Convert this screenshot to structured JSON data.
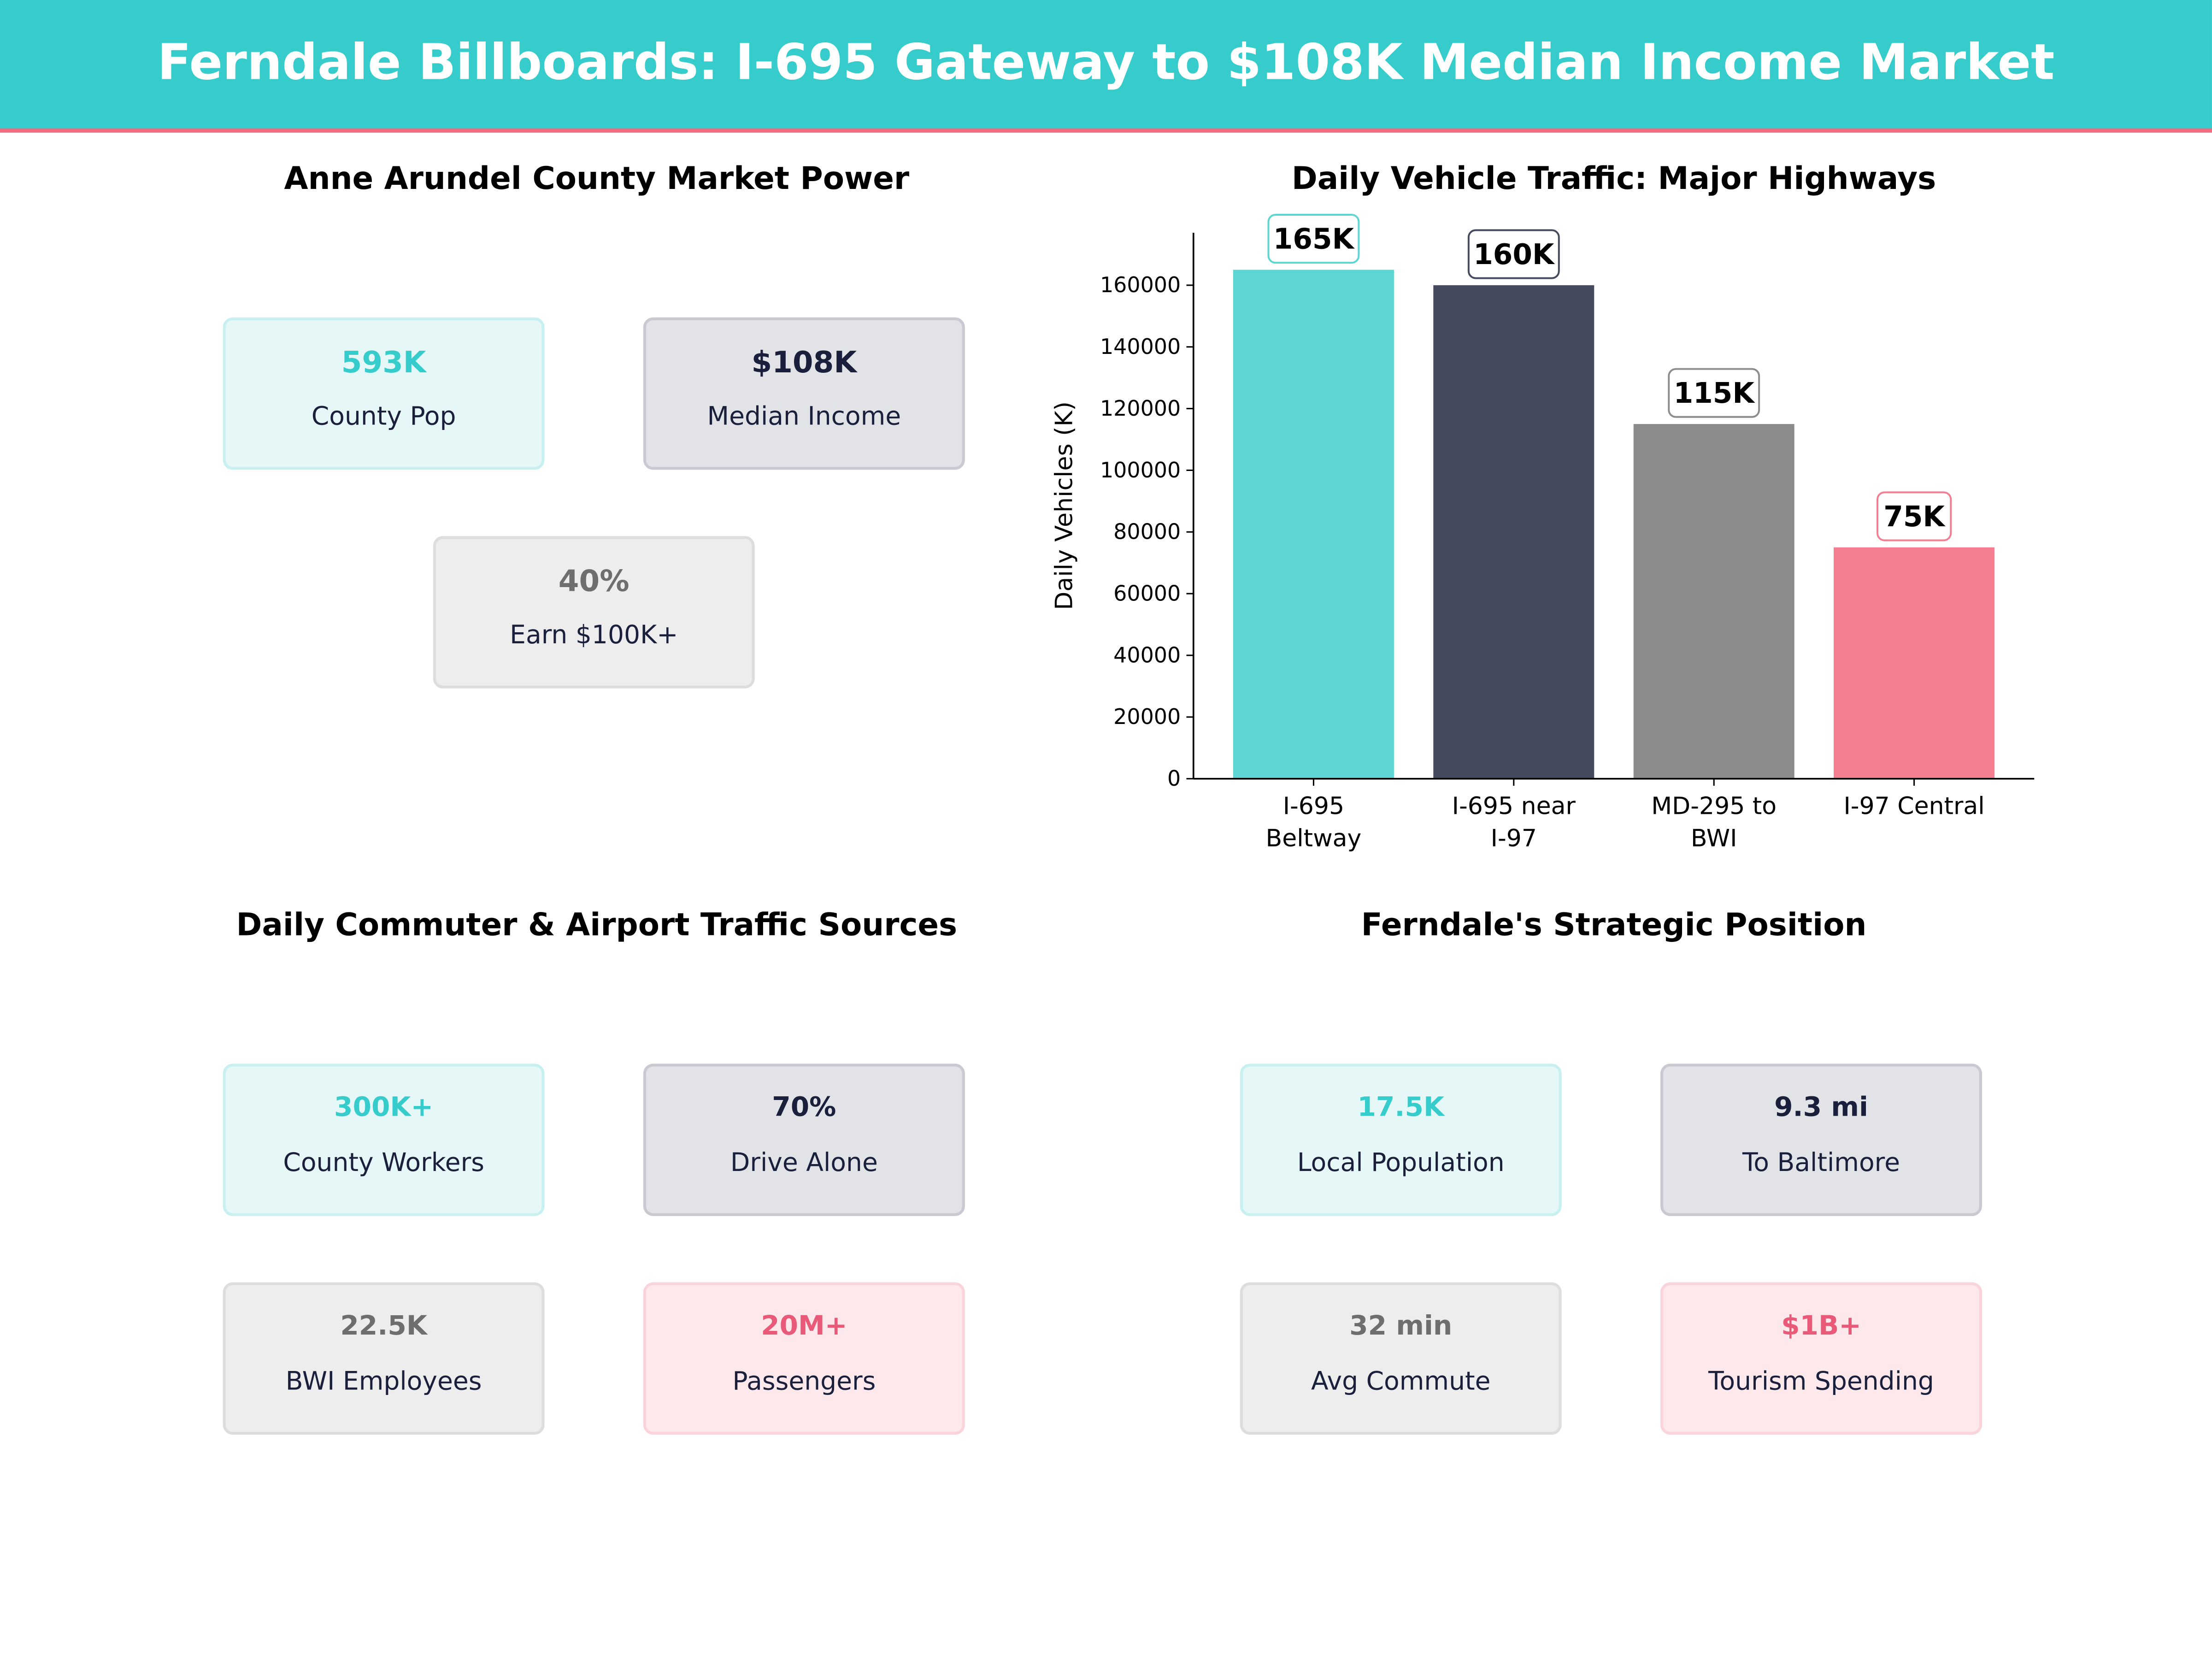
{
  "title": "Ferndale Billboards: I-695 Gateway to $108K Median Income Market",
  "colors": {
    "teal": "#36cccc",
    "navy": "#1a1f3c",
    "gray": "#6e6e6e",
    "pink": "#e85a77"
  },
  "panels": {
    "market": {
      "title": "Anne Arundel County Market Power",
      "cards": [
        {
          "value": "593K",
          "label": "County Pop"
        },
        {
          "value": "$108K",
          "label": "Median Income"
        },
        {
          "value": "40%",
          "label": "Earn $100K+"
        }
      ]
    },
    "commuter": {
      "title": "Daily Commuter & Airport Traffic Sources",
      "cards": [
        {
          "value": "300K+",
          "label": "County Workers"
        },
        {
          "value": "70%",
          "label": "Drive Alone"
        },
        {
          "value": "22.5K",
          "label": "BWI Employees"
        },
        {
          "value": "20M+",
          "label": "Passengers"
        }
      ]
    },
    "position": {
      "title": "Ferndale's Strategic Position",
      "cards": [
        {
          "value": "17.5K",
          "label": "Local Population"
        },
        {
          "value": "9.3 mi",
          "label": "To Baltimore"
        },
        {
          "value": "32 min",
          "label": "Avg Commute"
        },
        {
          "value": "$1B+",
          "label": "Tourism Spending"
        }
      ]
    }
  },
  "chart_data": {
    "type": "bar",
    "title": "Daily Vehicle Traffic: Major Highways",
    "xlabel": "",
    "ylabel": "Daily Vehicles (K)",
    "categories": [
      [
        "I-695",
        "Beltway"
      ],
      [
        "I-695 near",
        "I-97"
      ],
      [
        "MD-295 to",
        "BWI"
      ],
      [
        "I-97 Central"
      ]
    ],
    "values": [
      165000,
      160000,
      115000,
      75000
    ],
    "data_labels": [
      "165K",
      "160K",
      "115K",
      "75K"
    ],
    "bar_colors": [
      "#5dd6d3",
      "#454a5f",
      "#8c8c8c",
      "#f47d91"
    ],
    "label_border_colors": [
      "#5dd6d3",
      "#454a5f",
      "#8c8c8c",
      "#f47d91"
    ],
    "yticks": [
      0,
      20000,
      40000,
      60000,
      80000,
      100000,
      120000,
      140000,
      160000
    ],
    "ytick_labels": [
      "0",
      "20000",
      "40000",
      "60000",
      "80000",
      "100000",
      "120000",
      "140000",
      "160000"
    ],
    "ylim": [
      0,
      177000
    ],
    "grid": false
  }
}
